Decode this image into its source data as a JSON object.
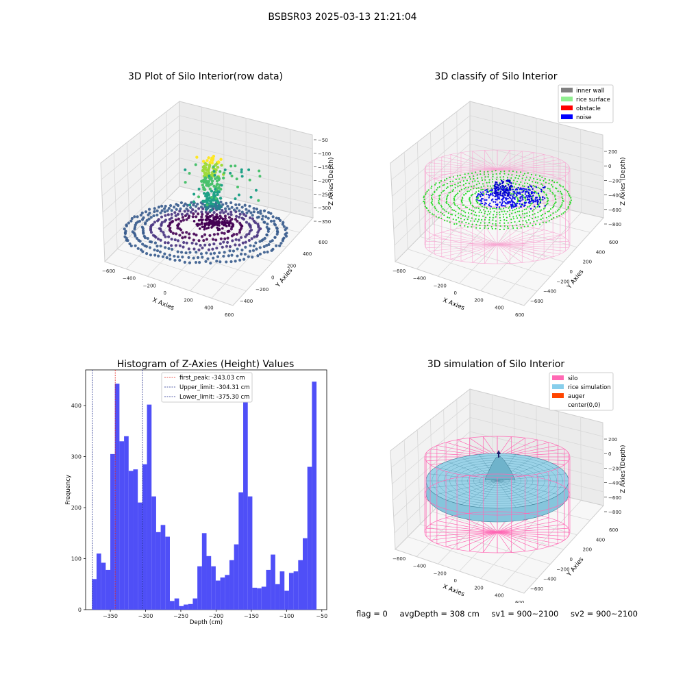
{
  "figure": {
    "title": "BSBSR03 2025-03-13 21:21:04"
  },
  "footer": {
    "flag": "flag = 0",
    "avg_depth": "avgDepth = 308 cm",
    "sv1": "sv1 = 900~2100",
    "sv2": "sv2 = 900~2100"
  },
  "chart_data": [
    {
      "type": "scatter",
      "title": "3D Plot of Silo Interior(row data)",
      "xlabel": "X Axies",
      "ylabel": "Y Axies",
      "zlabel": "Z Axies (Depth)",
      "x_ticks": [
        "-600",
        "-400",
        "-200",
        "0",
        "200",
        "400",
        "600"
      ],
      "y_ticks": [
        "-400",
        "-200",
        "0",
        "200",
        "400",
        "600"
      ],
      "z_ticks": [
        "-50",
        "-100",
        "-150",
        "-200",
        "-250",
        "-300",
        "-350"
      ],
      "colormap": "viridis"
    },
    {
      "type": "scatter",
      "title": "3D classify of Silo Interior",
      "xlabel": "X Axies",
      "ylabel": "Y Axies",
      "zlabel": "Z Axies (Depth)",
      "x_ticks": [
        "-600",
        "-400",
        "-200",
        "0",
        "200",
        "400",
        "600"
      ],
      "y_ticks": [
        "-600",
        "-400",
        "-200",
        "0",
        "200",
        "400",
        "600"
      ],
      "z_ticks": [
        "200",
        "0",
        "-200",
        "-400",
        "-600",
        "-800"
      ],
      "legend": [
        {
          "label": "inner wall",
          "color": "#808080"
        },
        {
          "label": "rice surface",
          "color": "#90ee90"
        },
        {
          "label": "obstacle",
          "color": "#ff0000"
        },
        {
          "label": "noise",
          "color": "#0000ff"
        }
      ],
      "legend_position": "top-right"
    },
    {
      "type": "bar",
      "title": "Histogram of Z-Axies (Height) Values",
      "xlabel": "Depth (cm)",
      "ylabel": "Frequency",
      "xlim": [
        -385,
        -43
      ],
      "ylim": [
        0,
        470
      ],
      "x_ticks": [
        -350,
        -300,
        -250,
        -200,
        -150,
        -100,
        -50
      ],
      "y_ticks": [
        0,
        100,
        200,
        300,
        400
      ],
      "bin_start": -376,
      "bin_width": 6.5,
      "values": [
        60,
        110,
        92,
        78,
        305,
        443,
        330,
        340,
        272,
        275,
        210,
        285,
        402,
        222,
        152,
        166,
        143,
        17,
        22,
        7,
        10,
        11,
        22,
        85,
        150,
        105,
        85,
        57,
        63,
        68,
        97,
        128,
        230,
        412,
        222,
        43,
        42,
        45,
        78,
        108,
        50,
        75,
        37,
        72,
        75,
        97,
        140,
        280,
        447
      ],
      "bar_color": "#4f4ff7",
      "vlines": [
        {
          "label": "first_peak: -343.03 cm",
          "x": -343.03,
          "color": "#e8271f"
        },
        {
          "label": "Upper_limit: -304.31 cm",
          "x": -304.31,
          "color": "#1e2a8c"
        },
        {
          "label": "Lower_limit: -375.30 cm",
          "x": -375.3,
          "color": "#1e2a8c"
        }
      ],
      "legend_position": "top-center"
    },
    {
      "type": "area",
      "title": "3D simulation of Silo Interior",
      "xlabel": "X Axies",
      "ylabel": "Y Axies",
      "zlabel": "Z Axies (Depth)",
      "x_ticks": [
        "-600",
        "-400",
        "-200",
        "0",
        "200",
        "400",
        "600"
      ],
      "y_ticks": [
        "-600",
        "-400",
        "-200",
        "0",
        "200",
        "400",
        "600"
      ],
      "z_ticks": [
        "200",
        "0",
        "-200",
        "-400",
        "-600",
        "-800"
      ],
      "legend": [
        {
          "label": "silo",
          "color": "#ff69b4"
        },
        {
          "label": "rice simulation",
          "color": "#87ceeb"
        },
        {
          "label": "auger",
          "color": "#ff4500"
        },
        {
          "label": "center(0,0)",
          "color": "#ffffff"
        }
      ],
      "legend_position": "top-right"
    }
  ]
}
